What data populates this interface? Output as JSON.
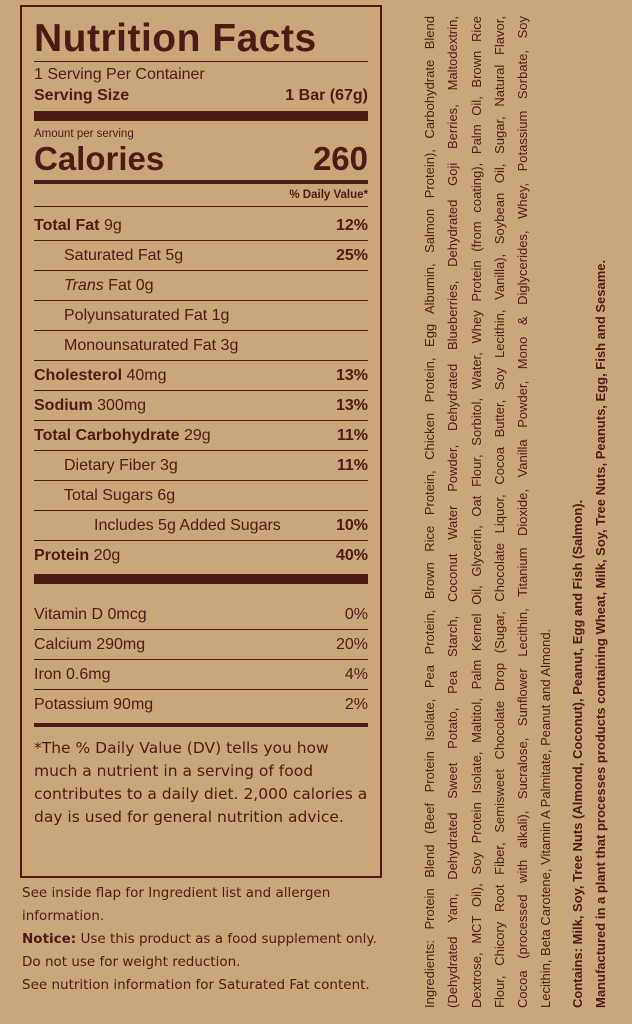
{
  "panel": {
    "title": "Nutrition Facts",
    "servings": "1 Serving Per Container",
    "serving_size_label": "Serving Size",
    "serving_size_value": "1 Bar (67g)",
    "amount_per_serving": "Amount per serving",
    "calories_label": "Calories",
    "calories_value": "260",
    "dv_header": "% Daily Value*",
    "nutrients": [
      {
        "name": "Total Fat",
        "amount": "9g",
        "dv": "12%"
      },
      {
        "name": "Saturated Fat",
        "amount": "5g",
        "dv": "25%"
      },
      {
        "name": "Trans",
        "suffix": "Fat 0g",
        "dv": ""
      },
      {
        "name": "Polyunsaturated Fat 1g",
        "dv": ""
      },
      {
        "name": "Monounsaturated Fat 3g",
        "dv": ""
      },
      {
        "name": "Cholesterol",
        "amount": "40mg",
        "dv": "13%"
      },
      {
        "name": "Sodium",
        "amount": "300mg",
        "dv": "13%"
      },
      {
        "name": "Total Carbohydrate",
        "amount": "29g",
        "dv": "11%"
      },
      {
        "name": "Dietary Fiber 3g",
        "dv": "11%"
      },
      {
        "name": "Total Sugars 6g",
        "dv": ""
      },
      {
        "name": "Includes 5g Added Sugars",
        "dv": "10%"
      },
      {
        "name": "Protein",
        "amount": "20g",
        "dv": "40%"
      }
    ],
    "vitamins": [
      {
        "name": "Vitamin D 0mcg",
        "dv": "0%"
      },
      {
        "name": "Calcium 290mg",
        "dv": "20%"
      },
      {
        "name": "Iron 0.6mg",
        "dv": "4%"
      },
      {
        "name": "Potassium 90mg",
        "dv": "2%"
      }
    ],
    "footnote": "*The % Daily Value (DV) tells you how much a nutrient in a serving of food contributes to a daily diet. 2,000 calories a day is used for general nutrition advice."
  },
  "notes": {
    "flap": "See inside flap for Ingredient list and allergen information.",
    "notice_label": "Notice:",
    "notice_text": " Use this product as a food supplement only. Do not use for weight reduction.",
    "sat_fat": "See nutrition information for Saturated Fat content."
  },
  "ingredients": {
    "lines": [
      "Ingredients: Protein Blend (Beef Protein Isolate, Pea Protein, Brown Rice Protein, Chicken Protein, Egg Albumin, Salmon Protein), Carbohydrate Blend",
      "(Dehydrated Yam, Dehydrated Sweet Potato, Pea Starch, Coconut Water Powder, Dehydrated Blueberries, Dehydrated Goji Berries, Maltodextrin,",
      "Dextrose, MCT Oil), Soy Protein Isolate, Maltitol, Palm Kernel Oil, Glycerin, Oat Flour, Sorbitol, Water, Whey Protein (from coating), Palm Oil, Brown Rice",
      "Flour, Chicory Root Fiber, Semisweet Chocolate Drop (Sugar, Chocolate Liquor, Cocoa Butter, Soy Lecithin, Vanilla), Soybean Oil, Sugar, Natural Flavor,",
      "Cocoa (processed with alkali), Sucralose, Sunflower Lecithin, Titanium Dioxide, Vanilla Powder, Mono & Diglycerides, Whey, Potassium Sorbate, Soy",
      "Lecithin, Beta Carotene, Vitamin A Palmitate, Peanut and Almond."
    ],
    "contains": "Contains: Milk, Soy, Tree Nuts (Almond, Coconut), Peanut, Egg and Fish (Salmon).",
    "manufactured": "Manufactured in a plant that processes products containing Wheat, Milk, Soy, Tree Nuts, Peanuts, Egg, Fish and Sesame."
  }
}
